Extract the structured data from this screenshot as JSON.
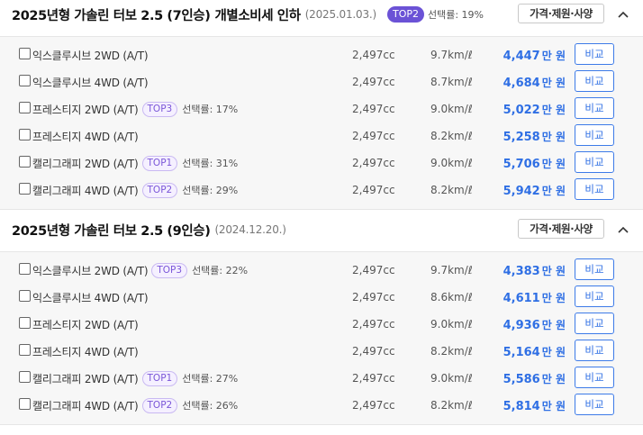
{
  "sections": [
    {
      "title": "2025년형 가솔린 터보 2.5 (7인승)",
      "note": "개별소비세 인하",
      "date": "(2025.01.03.)",
      "badge": "TOP2",
      "badge_rate": "선택률: 19%",
      "spec_button": "가격·제원·사양",
      "rows": [
        {
          "name": "익스클루시브 2WD (A/T)",
          "badge": "",
          "rate": "",
          "cc": "2,497cc",
          "eff": "9.7km/ℓ",
          "price": "4,447",
          "unit": "만 원",
          "cmp": "비교"
        },
        {
          "name": "익스클루시브 4WD (A/T)",
          "badge": "",
          "rate": "",
          "cc": "2,497cc",
          "eff": "8.7km/ℓ",
          "price": "4,684",
          "unit": "만 원",
          "cmp": "비교"
        },
        {
          "name": "프레스티지 2WD (A/T)",
          "badge": "TOP3",
          "rate": "선택률: 17%",
          "cc": "2,497cc",
          "eff": "9.0km/ℓ",
          "price": "5,022",
          "unit": "만 원",
          "cmp": "비교"
        },
        {
          "name": "프레스티지 4WD (A/T)",
          "badge": "",
          "rate": "",
          "cc": "2,497cc",
          "eff": "8.2km/ℓ",
          "price": "5,258",
          "unit": "만 원",
          "cmp": "비교"
        },
        {
          "name": "캘리그래피 2WD (A/T)",
          "badge": "TOP1",
          "rate": "선택률: 31%",
          "cc": "2,497cc",
          "eff": "9.0km/ℓ",
          "price": "5,706",
          "unit": "만 원",
          "cmp": "비교"
        },
        {
          "name": "캘리그래피 4WD (A/T)",
          "badge": "TOP2",
          "rate": "선택률: 29%",
          "cc": "2,497cc",
          "eff": "8.2km/ℓ",
          "price": "5,942",
          "unit": "만 원",
          "cmp": "비교"
        }
      ]
    },
    {
      "title": "2025년형 가솔린 터보 2.5 (9인승)",
      "note": "",
      "date": "(2024.12.20.)",
      "badge": "",
      "badge_rate": "",
      "spec_button": "가격·제원·사양",
      "rows": [
        {
          "name": "익스클루시브 2WD (A/T)",
          "badge": "TOP3",
          "rate": "선택률: 22%",
          "cc": "2,497cc",
          "eff": "9.7km/ℓ",
          "price": "4,383",
          "unit": "만 원",
          "cmp": "비교"
        },
        {
          "name": "익스클루시브 4WD (A/T)",
          "badge": "",
          "rate": "",
          "cc": "2,497cc",
          "eff": "8.6km/ℓ",
          "price": "4,611",
          "unit": "만 원",
          "cmp": "비교"
        },
        {
          "name": "프레스티지 2WD (A/T)",
          "badge": "",
          "rate": "",
          "cc": "2,497cc",
          "eff": "9.0km/ℓ",
          "price": "4,936",
          "unit": "만 원",
          "cmp": "비교"
        },
        {
          "name": "프레스티지 4WD (A/T)",
          "badge": "",
          "rate": "",
          "cc": "2,497cc",
          "eff": "8.2km/ℓ",
          "price": "5,164",
          "unit": "만 원",
          "cmp": "비교"
        },
        {
          "name": "캘리그래피 2WD (A/T)",
          "badge": "TOP1",
          "rate": "선택률: 27%",
          "cc": "2,497cc",
          "eff": "9.0km/ℓ",
          "price": "5,586",
          "unit": "만 원",
          "cmp": "비교"
        },
        {
          "name": "캘리그래피 4WD (A/T)",
          "badge": "TOP2",
          "rate": "선택률: 26%",
          "cc": "2,497cc",
          "eff": "8.2km/ℓ",
          "price": "5,814",
          "unit": "만 원",
          "cmp": "비교"
        }
      ]
    }
  ],
  "colors": {
    "accent": "#2f6fe4",
    "badge_fill": "#6b52d6",
    "badge_outline": "#7a56d8",
    "row_bg": "#f7f7f7"
  },
  "icons": {
    "collapse": "chevron-up-icon",
    "checkbox": "checkbox-icon"
  }
}
